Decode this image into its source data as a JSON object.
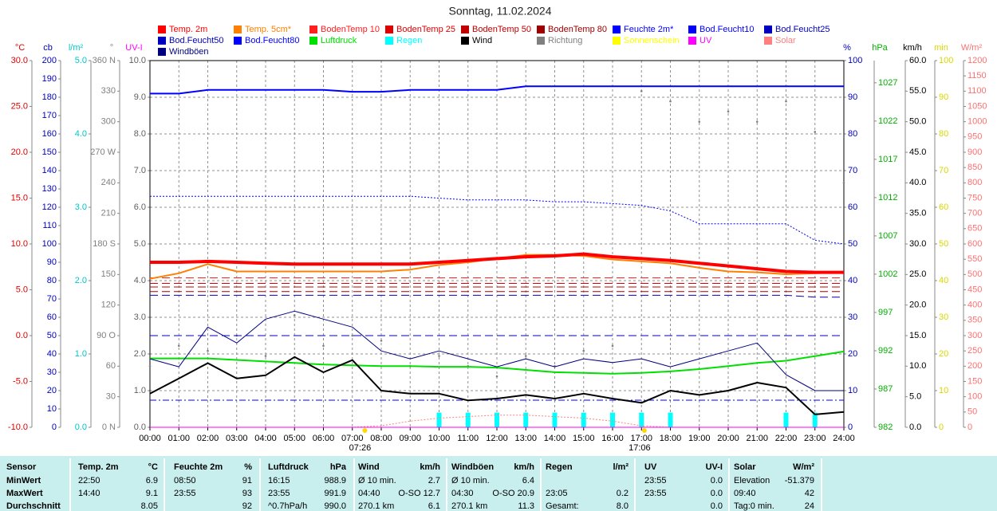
{
  "chart_data": {
    "type": "line",
    "title": "Sonntag, 11.02.2024",
    "x": [
      0,
      1,
      2,
      3,
      4,
      5,
      6,
      7,
      8,
      9,
      10,
      11,
      12,
      13,
      14,
      15,
      16,
      17,
      18,
      19,
      20,
      21,
      22,
      23,
      24
    ],
    "xlim": [
      0,
      24
    ],
    "xticks": [
      {
        "value": 0,
        "label": "00:00"
      },
      {
        "value": 1,
        "label": "01:00"
      },
      {
        "value": 2,
        "label": "02:00"
      },
      {
        "value": 3,
        "label": "03:00"
      },
      {
        "value": 4,
        "label": "04:00"
      },
      {
        "value": 5,
        "label": "05:00"
      },
      {
        "value": 6,
        "label": "06:00"
      },
      {
        "value": 7,
        "label": "07:00"
      },
      {
        "value": 8,
        "label": "08:00"
      },
      {
        "value": 9,
        "label": "09:00"
      },
      {
        "value": 10,
        "label": "10:00"
      },
      {
        "value": 11,
        "label": "11:00"
      },
      {
        "value": 12,
        "label": "12:00"
      },
      {
        "value": 13,
        "label": "13:00"
      },
      {
        "value": 14,
        "label": "14:00"
      },
      {
        "value": 15,
        "label": "15:00"
      },
      {
        "value": 16,
        "label": "16:00"
      },
      {
        "value": 17,
        "label": "17:00"
      },
      {
        "value": 18,
        "label": "18:00"
      },
      {
        "value": 19,
        "label": "19:00"
      },
      {
        "value": 20,
        "label": "20:00"
      },
      {
        "value": 21,
        "label": "21:00"
      },
      {
        "value": 22,
        "label": "22:00"
      },
      {
        "value": 23,
        "label": "23:00"
      },
      {
        "value": 24,
        "label": "24:00"
      }
    ],
    "grid": true,
    "annotations": [
      {
        "text": "07:26",
        "x": 7.433
      },
      {
        "text": "17:06",
        "x": 17.1
      }
    ],
    "axes": [
      {
        "label": "°C",
        "color": "#e00000",
        "lim": [
          -10,
          30
        ],
        "ticks": [
          {
            "value": -10,
            "label": "-10.0"
          },
          {
            "value": -5,
            "label": "-5.0"
          },
          {
            "value": 0,
            "label": "0.0"
          },
          {
            "value": 5,
            "label": "5.0"
          },
          {
            "value": 10,
            "label": "10.0"
          },
          {
            "value": 15,
            "label": "15.0"
          },
          {
            "value": 20,
            "label": "20.0"
          },
          {
            "value": 25,
            "label": "25.0"
          },
          {
            "value": 30,
            "label": "30.0"
          }
        ]
      },
      {
        "label": "cb",
        "color": "#0000c0",
        "lim": [
          0,
          200
        ],
        "ticks": [
          0,
          10,
          20,
          30,
          40,
          50,
          60,
          70,
          80,
          90,
          100,
          110,
          120,
          130,
          140,
          150,
          160,
          170,
          180,
          190,
          200
        ]
      },
      {
        "label": "l/m²",
        "color": "#00c8c8",
        "lim": [
          0,
          5
        ],
        "ticks": [
          {
            "value": 0,
            "label": "0.0"
          },
          {
            "value": 1,
            "label": "1.0"
          },
          {
            "value": 2,
            "label": "2.0"
          },
          {
            "value": 3,
            "label": "3.0"
          },
          {
            "value": 4,
            "label": "4.0"
          },
          {
            "value": 5,
            "label": "5.0"
          }
        ]
      },
      {
        "label": "°",
        "color": "#808080",
        "lim": [
          0,
          360
        ],
        "ticks": [
          {
            "value": 0,
            "label": "0 N"
          },
          30,
          60,
          {
            "value": 90,
            "label": "90 O"
          },
          120,
          150,
          {
            "value": 180,
            "label": "180 S"
          },
          210,
          240,
          {
            "value": 270,
            "label": "270 W"
          },
          300,
          330,
          {
            "value": 360,
            "label": "360 N"
          }
        ]
      },
      {
        "label": "UV-I",
        "color": "#ff00ff",
        "lim": [
          0,
          10
        ],
        "ticks": [
          {
            "value": 0,
            "label": "0.0"
          },
          {
            "value": 1,
            "label": "1.0"
          },
          {
            "value": 2,
            "label": "2.0"
          },
          {
            "value": 3,
            "label": "3.0"
          },
          {
            "value": 4,
            "label": "4.0"
          },
          {
            "value": 5,
            "label": "5.0"
          },
          {
            "value": 6,
            "label": "6.0"
          },
          {
            "value": 7,
            "label": "7.0"
          },
          {
            "value": 8,
            "label": "8.0"
          },
          {
            "value": 9,
            "label": "9.0"
          },
          {
            "value": 10,
            "label": "10.0"
          }
        ]
      },
      {
        "label": "%",
        "color": "#0000c0",
        "lim": [
          0,
          100
        ],
        "ticks": [
          0,
          10,
          20,
          30,
          40,
          50,
          60,
          70,
          80,
          90,
          100
        ]
      },
      {
        "label": "hPa",
        "color": "#00b000",
        "lim": [
          982,
          1029.9
        ],
        "ticks": [
          982,
          987,
          992,
          997,
          1002,
          1007,
          1012,
          1017,
          1022,
          1027
        ]
      },
      {
        "label": "km/h",
        "color": "#000000",
        "lim": [
          0,
          60
        ],
        "ticks": [
          {
            "value": 0,
            "label": "0.0"
          },
          {
            "value": 5,
            "label": "5.0"
          },
          {
            "value": 10,
            "label": "10.0"
          },
          {
            "value": 15,
            "label": "15.0"
          },
          {
            "value": 20,
            "label": "20.0"
          },
          {
            "value": 25,
            "label": "25.0"
          },
          {
            "value": 30,
            "label": "30.0"
          },
          {
            "value": 35,
            "label": "35.0"
          },
          {
            "value": 40,
            "label": "40.0"
          },
          {
            "value": 45,
            "label": "45.0"
          },
          {
            "value": 50,
            "label": "50.0"
          },
          {
            "value": 55,
            "label": "55.0"
          },
          {
            "value": 60,
            "label": "60.0"
          }
        ]
      },
      {
        "label": "min",
        "color": "#d8d800",
        "lim": [
          0,
          100
        ],
        "ticks": [
          0,
          10,
          20,
          30,
          40,
          50,
          60,
          70,
          80,
          90,
          100
        ]
      },
      {
        "label": "W/m²",
        "color": "#ff7070",
        "lim": [
          0,
          1200
        ],
        "ticks": [
          0,
          50,
          100,
          150,
          200,
          250,
          300,
          350,
          400,
          450,
          500,
          550,
          600,
          650,
          700,
          750,
          800,
          850,
          900,
          950,
          1000,
          1050,
          1100,
          1150,
          1200
        ]
      }
    ],
    "series": [
      {
        "name": "Temp. 2m",
        "color": "#ff0000",
        "axis": 0,
        "style": "line",
        "width": 4,
        "values": [
          8.0,
          8.0,
          8.1,
          8.0,
          7.9,
          7.8,
          7.8,
          7.8,
          7.8,
          7.8,
          8.0,
          8.2,
          8.4,
          8.6,
          8.7,
          8.9,
          8.6,
          8.4,
          8.2,
          7.9,
          7.6,
          7.3,
          7.0,
          6.9,
          6.9
        ]
      },
      {
        "name": "Temp. 5cm*",
        "color": "#ff8000",
        "axis": 0,
        "style": "line",
        "width": 2,
        "values": [
          6.2,
          6.8,
          7.8,
          7.0,
          7.0,
          7.0,
          7.0,
          7.0,
          7.0,
          7.2,
          7.7,
          8.0,
          8.4,
          8.8,
          8.8,
          8.7,
          8.3,
          8.1,
          7.9,
          7.4,
          7.0,
          6.9,
          6.7,
          6.8,
          6.9
        ]
      },
      {
        "name": "BodenTemp 10",
        "color": "#ff2020",
        "axis": 0,
        "style": "dashed",
        "width": 1,
        "values": [
          6.3,
          6.3,
          6.3,
          6.3,
          6.3,
          6.3,
          6.3,
          6.3,
          6.3,
          6.3,
          6.3,
          6.3,
          6.3,
          6.3,
          6.3,
          6.3,
          6.3,
          6.3,
          6.3,
          6.3,
          6.3,
          6.3,
          6.3,
          6.3,
          6.3
        ]
      },
      {
        "name": "BodenTemp 25",
        "color": "#e00000",
        "axis": 0,
        "style": "dashed",
        "width": 1,
        "values": [
          5.7,
          5.7,
          5.7,
          5.7,
          5.7,
          5.7,
          5.7,
          5.7,
          5.7,
          5.7,
          5.7,
          5.7,
          5.7,
          5.7,
          5.7,
          5.7,
          5.7,
          5.7,
          5.7,
          5.7,
          5.7,
          5.7,
          5.7,
          5.7,
          5.7
        ]
      },
      {
        "name": "BodenTemp 50",
        "color": "#c00000",
        "axis": 0,
        "style": "dashed",
        "width": 1,
        "values": [
          5.3,
          5.3,
          5.3,
          5.3,
          5.3,
          5.3,
          5.3,
          5.3,
          5.3,
          5.3,
          5.3,
          5.3,
          5.3,
          5.3,
          5.3,
          5.3,
          5.3,
          5.3,
          5.3,
          5.3,
          5.3,
          5.3,
          5.3,
          5.3,
          5.3
        ]
      },
      {
        "name": "BodenTemp 80",
        "color": "#a00000",
        "axis": 0,
        "style": "dashed",
        "width": 1,
        "values": [
          4.8,
          4.8,
          4.8,
          4.8,
          4.8,
          4.8,
          4.8,
          4.8,
          4.8,
          4.8,
          4.8,
          4.8,
          4.8,
          4.8,
          4.8,
          4.8,
          4.8,
          4.8,
          4.8,
          4.8,
          4.8,
          4.8,
          4.8,
          4.8,
          4.8
        ]
      },
      {
        "name": "Feuchte 2m*",
        "color": "#0000ff",
        "axis": 5,
        "style": "line",
        "width": 2,
        "values": [
          91,
          91,
          92,
          92,
          92,
          92,
          92,
          91.5,
          91.5,
          92,
          92,
          92,
          92,
          93,
          93,
          93,
          93,
          93,
          93,
          93,
          93,
          93,
          93,
          93,
          93
        ]
      },
      {
        "name": "Bod.Feucht10",
        "color": "#0000ff",
        "axis": 5,
        "style": "dotted",
        "width": 1,
        "values": [
          63,
          63,
          63,
          63,
          63,
          63,
          63,
          63,
          63,
          63,
          62.5,
          62,
          62,
          62,
          61.5,
          61.5,
          61,
          60.5,
          59,
          55.5,
          55.5,
          55.5,
          55.5,
          51,
          50
        ]
      },
      {
        "name": "Bod.Feucht25",
        "color": "#0000c0",
        "axis": 5,
        "style": "dashed",
        "width": 1,
        "values": [
          36,
          36,
          36,
          36,
          36,
          36,
          36,
          36,
          36,
          36,
          36,
          36,
          36,
          36,
          36,
          36,
          36,
          36,
          36,
          36,
          36,
          36,
          36,
          35.5,
          35.5
        ]
      },
      {
        "name": "Bod.Feucht50",
        "color": "#0000c0",
        "axis": 5,
        "style": "dashed",
        "width": 1,
        "values": [
          25,
          25,
          25,
          25,
          25,
          25,
          25,
          25,
          25,
          25,
          25,
          25,
          25,
          25,
          25,
          25,
          25,
          25,
          25,
          25,
          25,
          25,
          25,
          25,
          25
        ]
      },
      {
        "name": "Bod.Feucht80",
        "color": "#0000ff",
        "axis": 5,
        "style": "dashdot",
        "width": 1,
        "values": [
          7.4,
          7.4,
          7.4,
          7.4,
          7.4,
          7.4,
          7.4,
          7.4,
          7.4,
          7.4,
          7.4,
          7.4,
          7.4,
          7.4,
          7.4,
          7.4,
          7.4,
          7.4,
          7.4,
          7.4,
          7.4,
          7.4,
          7.4,
          7.4,
          7.4
        ]
      },
      {
        "name": "Luftdruck",
        "color": "#00e000",
        "axis": 6,
        "style": "line",
        "width": 2,
        "values": [
          991.0,
          991.0,
          991.0,
          990.8,
          990.6,
          990.4,
          990.2,
          990.1,
          990.0,
          990.0,
          989.9,
          989.9,
          989.8,
          989.5,
          989.2,
          989.1,
          989.0,
          989.1,
          989.3,
          989.6,
          990.0,
          990.4,
          990.7,
          991.3,
          991.9
        ]
      },
      {
        "name": "Regen",
        "color": "#00ffff",
        "axis": 2,
        "style": "bars",
        "width": 1,
        "values": [
          0,
          0,
          0,
          0,
          0,
          0,
          0,
          0,
          0,
          0,
          0.2,
          0.2,
          0.2,
          0.2,
          0.2,
          0.2,
          0.2,
          0.2,
          0.2,
          0,
          0,
          0,
          0.2,
          0.2,
          0
        ]
      },
      {
        "name": "Wind",
        "color": "#000000",
        "axis": 7,
        "style": "line",
        "width": 2,
        "values": [
          5.5,
          8.0,
          10.5,
          8.0,
          8.5,
          11.5,
          9.0,
          11.0,
          6.0,
          5.5,
          5.5,
          4.4,
          4.7,
          5.3,
          4.7,
          5.5,
          4.7,
          4.0,
          6.0,
          5.3,
          6.0,
          7.3,
          6.5,
          2.1,
          2.5
        ]
      },
      {
        "name": "Richtung",
        "color": "#808080",
        "axis": 3,
        "style": "points",
        "width": 1,
        "values": [
          60,
          80,
          75,
          90,
          70,
          110,
          80,
          90,
          85,
          60,
          70,
          60,
          50,
          70,
          60,
          75,
          80,
          330,
          320,
          300,
          310,
          300,
          320,
          290,
          240
        ]
      },
      {
        "name": "Sonnenschein",
        "color": "#ffff00",
        "axis": 8,
        "style": "line",
        "width": 1,
        "values": [
          0,
          0,
          0,
          0,
          0,
          0,
          0,
          0,
          0,
          0,
          0,
          0,
          0,
          0,
          0,
          0,
          0,
          0,
          0,
          0,
          0,
          0,
          0,
          0,
          0
        ]
      },
      {
        "name": "UV",
        "color": "#ff00ff",
        "axis": 4,
        "style": "line",
        "width": 1,
        "values": [
          0,
          0,
          0,
          0,
          0,
          0,
          0,
          0,
          0,
          0,
          0,
          0,
          0,
          0,
          0,
          0,
          0,
          0,
          0,
          0,
          0,
          0,
          0,
          0,
          0
        ]
      },
      {
        "name": "Solar",
        "color": "#ff8080",
        "axis": 9,
        "style": "dotted",
        "width": 1,
        "values": [
          0,
          0,
          0,
          0,
          0,
          0,
          0,
          0,
          5,
          20,
          30,
          35,
          40,
          40,
          35,
          30,
          20,
          5,
          0,
          0,
          0,
          0,
          0,
          0,
          0
        ]
      },
      {
        "name": "Windböen",
        "color": "#000080",
        "axis": 7,
        "style": "line",
        "width": 1,
        "values": [
          11.2,
          9.9,
          16.4,
          13.8,
          17.7,
          19.0,
          17.7,
          16.4,
          12.5,
          11.2,
          12.5,
          11.2,
          9.9,
          11.2,
          9.9,
          11.2,
          10.6,
          11.2,
          9.9,
          11.2,
          12.5,
          13.8,
          8.6,
          6.0,
          6.0
        ]
      }
    ]
  },
  "table": {
    "header": [
      "Sensor",
      "Temp. 2m",
      "°C",
      "Feuchte 2m",
      "%",
      "Luftdruck",
      "hPa",
      "Wind",
      "km/h",
      "Windböen",
      "km/h",
      "Regen",
      "l/m²",
      "UV",
      "UV-I",
      "Solar",
      "W/m²"
    ],
    "rows": [
      [
        "MinWert",
        "22:50",
        "6.9",
        "08:50",
        "91",
        "16:15",
        "988.9",
        "Ø 10 min.",
        "2.7",
        "Ø 10 min.",
        "6.4",
        null,
        null,
        "23:55",
        "0.0",
        "Elevation",
        "-51.379"
      ],
      [
        "MaxWert",
        "14:40",
        "9.1",
        "23:55",
        "93",
        "23:55",
        "991.9",
        "04:40",
        "O-SO 12.7",
        "04:30",
        "O-SO 20.9",
        "23:05",
        "0.2",
        "23:55",
        "0.0",
        "09:40",
        "42"
      ],
      [
        "Durchschnitt",
        null,
        "8.05",
        null,
        "92",
        "^0.7hPa/h",
        "990.0",
        "270.1 km",
        "6.1",
        "270.1 km",
        "11.3",
        "Gesamt:",
        "8.0",
        null,
        "0.0",
        "Tag:0 min.",
        "24"
      ]
    ]
  }
}
